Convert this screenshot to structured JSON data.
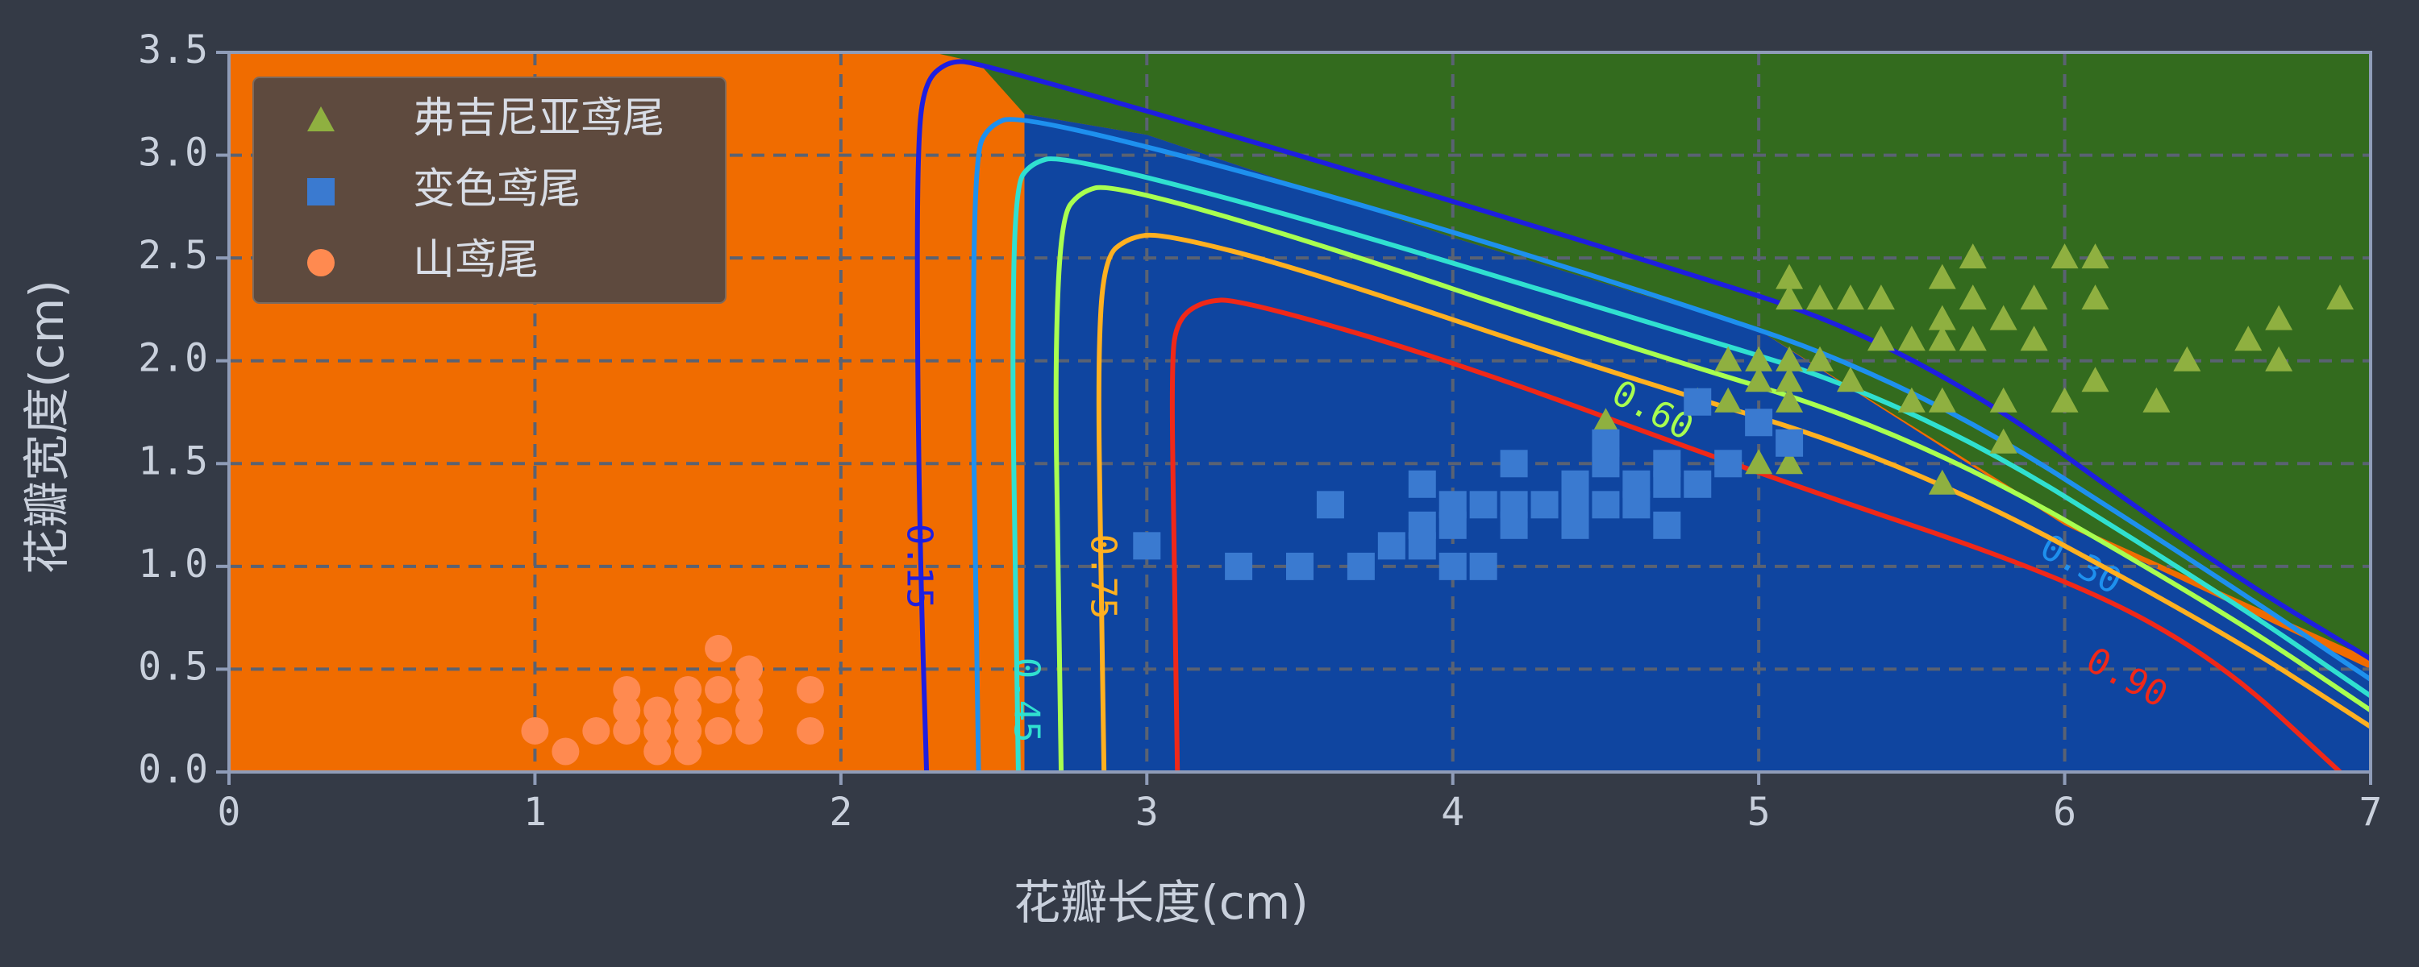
{
  "chart_data": {
    "type": "contour",
    "xlabel": "花瓣长度(cm)",
    "ylabel": "花瓣宽度(cm)",
    "xlim": [
      0,
      7
    ],
    "ylim": [
      0,
      3.5
    ],
    "xticks": [
      "0",
      "1",
      "2",
      "3",
      "4",
      "5",
      "6",
      "7"
    ],
    "yticks": [
      "0.0",
      "0.5",
      "1.0",
      "1.5",
      "2.0",
      "2.5",
      "3.0",
      "3.5"
    ],
    "grid": true,
    "legend_position": "top-left",
    "region_colors": {
      "setosa": "#f06c00",
      "versicolor": "#0f45a0",
      "virginica": "#336b1e"
    },
    "series": [
      {
        "name": "弗吉尼亚鸢尾",
        "marker": "triangle",
        "color": "#8fb040",
        "points": [
          [
            4.5,
            1.7
          ],
          [
            4.8,
            1.8
          ],
          [
            4.9,
            1.8
          ],
          [
            4.9,
            2.0
          ],
          [
            5.0,
            2.0
          ],
          [
            5.0,
            1.5
          ],
          [
            5.0,
            1.9
          ],
          [
            5.1,
            2.4
          ],
          [
            5.1,
            2.3
          ],
          [
            5.1,
            2.0
          ],
          [
            5.1,
            1.9
          ],
          [
            5.1,
            1.8
          ],
          [
            5.1,
            1.5
          ],
          [
            5.2,
            2.3
          ],
          [
            5.2,
            2.0
          ],
          [
            5.3,
            2.3
          ],
          [
            5.3,
            1.9
          ],
          [
            5.4,
            2.3
          ],
          [
            5.4,
            2.1
          ],
          [
            5.5,
            2.1
          ],
          [
            5.5,
            1.8
          ],
          [
            5.6,
            2.4
          ],
          [
            5.6,
            2.2
          ],
          [
            5.6,
            2.1
          ],
          [
            5.6,
            1.8
          ],
          [
            5.6,
            1.4
          ],
          [
            5.7,
            2.5
          ],
          [
            5.7,
            2.3
          ],
          [
            5.7,
            2.1
          ],
          [
            5.8,
            2.2
          ],
          [
            5.8,
            1.8
          ],
          [
            5.8,
            1.6
          ],
          [
            5.9,
            2.3
          ],
          [
            5.9,
            2.1
          ],
          [
            6.0,
            2.5
          ],
          [
            6.0,
            1.8
          ],
          [
            6.1,
            2.5
          ],
          [
            6.1,
            2.3
          ],
          [
            6.1,
            1.9
          ],
          [
            6.3,
            1.8
          ],
          [
            6.4,
            2.0
          ],
          [
            6.6,
            2.1
          ],
          [
            6.7,
            2.2
          ],
          [
            6.7,
            2.0
          ],
          [
            6.9,
            2.3
          ]
        ]
      },
      {
        "name": "变色鸢尾",
        "marker": "square",
        "color": "#3a7ad0",
        "points": [
          [
            3.0,
            1.1
          ],
          [
            3.3,
            1.0
          ],
          [
            3.5,
            1.0
          ],
          [
            3.6,
            1.3
          ],
          [
            3.7,
            1.0
          ],
          [
            3.8,
            1.1
          ],
          [
            3.9,
            1.1
          ],
          [
            3.9,
            1.2
          ],
          [
            3.9,
            1.4
          ],
          [
            4.0,
            1.0
          ],
          [
            4.0,
            1.2
          ],
          [
            4.0,
            1.3
          ],
          [
            4.1,
            1.0
          ],
          [
            4.1,
            1.3
          ],
          [
            4.2,
            1.2
          ],
          [
            4.2,
            1.3
          ],
          [
            4.2,
            1.5
          ],
          [
            4.3,
            1.3
          ],
          [
            4.4,
            1.2
          ],
          [
            4.4,
            1.3
          ],
          [
            4.4,
            1.4
          ],
          [
            4.5,
            1.3
          ],
          [
            4.5,
            1.5
          ],
          [
            4.5,
            1.6
          ],
          [
            4.6,
            1.3
          ],
          [
            4.6,
            1.4
          ],
          [
            4.7,
            1.2
          ],
          [
            4.7,
            1.4
          ],
          [
            4.7,
            1.5
          ],
          [
            4.8,
            1.4
          ],
          [
            4.8,
            1.8
          ],
          [
            4.9,
            1.5
          ],
          [
            5.0,
            1.7
          ],
          [
            5.1,
            1.6
          ]
        ]
      },
      {
        "name": "山鸢尾",
        "marker": "circle",
        "color": "#ff8a50",
        "points": [
          [
            1.0,
            0.2
          ],
          [
            1.1,
            0.1
          ],
          [
            1.2,
            0.2
          ],
          [
            1.3,
            0.2
          ],
          [
            1.3,
            0.3
          ],
          [
            1.3,
            0.4
          ],
          [
            1.4,
            0.1
          ],
          [
            1.4,
            0.2
          ],
          [
            1.4,
            0.3
          ],
          [
            1.5,
            0.1
          ],
          [
            1.5,
            0.2
          ],
          [
            1.5,
            0.3
          ],
          [
            1.5,
            0.4
          ],
          [
            1.6,
            0.2
          ],
          [
            1.6,
            0.4
          ],
          [
            1.6,
            0.6
          ],
          [
            1.7,
            0.2
          ],
          [
            1.7,
            0.3
          ],
          [
            1.7,
            0.4
          ],
          [
            1.7,
            0.5
          ],
          [
            1.9,
            0.2
          ],
          [
            1.9,
            0.4
          ]
        ]
      }
    ],
    "contours": [
      {
        "label": "0.15",
        "color": "#1e1ee0",
        "points": [
          [
            2.28,
            0.0
          ],
          [
            2.26,
            1.0
          ],
          [
            2.25,
            2.0
          ],
          [
            2.25,
            3.0
          ],
          [
            2.27,
            3.35
          ],
          [
            2.35,
            3.46
          ],
          [
            2.45,
            3.45
          ],
          [
            3.5,
            3.0
          ],
          [
            4.5,
            2.55
          ],
          [
            5.5,
            2.08
          ],
          [
            6.5,
            1.0
          ],
          [
            7.0,
            0.55
          ]
        ],
        "label_at": [
          2.25,
          1.0
        ]
      },
      {
        "label": "0.30",
        "color": "#1e90ee",
        "points": [
          [
            2.45,
            0.0
          ],
          [
            2.44,
            1.0
          ],
          [
            2.43,
            2.0
          ],
          [
            2.44,
            3.0
          ],
          [
            2.48,
            3.14
          ],
          [
            2.58,
            3.2
          ],
          [
            3.5,
            2.85
          ],
          [
            4.5,
            2.4
          ],
          [
            5.5,
            1.9
          ],
          [
            6.5,
            0.95
          ],
          [
            7.0,
            0.45
          ]
        ],
        "label_at": [
          6.05,
          1.0
        ]
      },
      {
        "label": "0.45",
        "color": "#30e0d0",
        "points": [
          [
            2.58,
            0.0
          ],
          [
            2.57,
            1.0
          ],
          [
            2.56,
            2.0
          ],
          [
            2.57,
            2.85
          ],
          [
            2.62,
            2.96
          ],
          [
            2.72,
            3.0
          ],
          [
            3.5,
            2.7
          ],
          [
            4.5,
            2.25
          ],
          [
            5.5,
            1.8
          ],
          [
            6.5,
            0.88
          ],
          [
            7.0,
            0.37
          ]
        ],
        "label_at": [
          2.6,
          0.35
        ]
      },
      {
        "label": "0.60",
        "color": "#a8ff50",
        "points": [
          [
            2.72,
            0.0
          ],
          [
            2.71,
            1.0
          ],
          [
            2.7,
            2.0
          ],
          [
            2.72,
            2.7
          ],
          [
            2.78,
            2.82
          ],
          [
            2.88,
            2.86
          ],
          [
            3.5,
            2.6
          ],
          [
            4.5,
            2.1
          ],
          [
            5.5,
            1.65
          ],
          [
            6.5,
            0.8
          ],
          [
            7.0,
            0.3
          ]
        ],
        "label_at": [
          4.65,
          1.75
        ]
      },
      {
        "label": "0.75",
        "color": "#ffb020",
        "points": [
          [
            2.86,
            0.0
          ],
          [
            2.85,
            1.0
          ],
          [
            2.84,
            2.0
          ],
          [
            2.86,
            2.5
          ],
          [
            2.94,
            2.6
          ],
          [
            3.05,
            2.62
          ],
          [
            3.5,
            2.45
          ],
          [
            4.5,
            1.95
          ],
          [
            5.5,
            1.5
          ],
          [
            6.5,
            0.7
          ],
          [
            7.0,
            0.22
          ]
        ],
        "label_at": [
          2.85,
          0.95
        ]
      },
      {
        "label": "0.90",
        "color": "#f02818",
        "points": [
          [
            3.1,
            0.0
          ],
          [
            3.09,
            1.0
          ],
          [
            3.08,
            2.0
          ],
          [
            3.1,
            2.2
          ],
          [
            3.18,
            2.29
          ],
          [
            3.3,
            2.3
          ],
          [
            4.0,
            2.0
          ],
          [
            5.0,
            1.45
          ],
          [
            6.0,
            0.95
          ],
          [
            6.5,
            0.55
          ],
          [
            6.9,
            0.0
          ]
        ],
        "label_at": [
          6.2,
          0.45
        ]
      }
    ]
  }
}
